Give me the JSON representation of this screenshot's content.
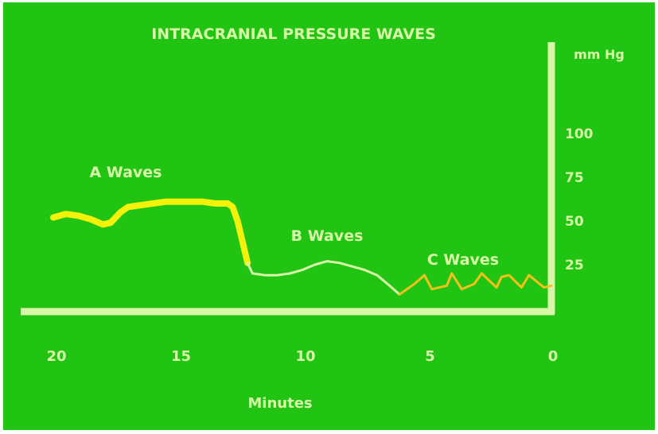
{
  "chart_data": {
    "type": "line",
    "title": "INTRACRANIAL PRESSURE WAVES",
    "xlabel": "Minutes",
    "ylabel": "mm Hg",
    "xlim": [
      20,
      0
    ],
    "ylim": [
      0,
      100
    ],
    "x_ticks": [
      "20",
      "15",
      "10",
      "5",
      "0"
    ],
    "y_ticks": [
      "100",
      "75",
      "50",
      "25"
    ],
    "grid": false,
    "colors": {
      "background": "#22c414",
      "axis": "#d8f7a8",
      "text": "#d8f7a8",
      "a_waves": "#f4f20a",
      "b_waves": "#d8f7a8",
      "c_waves": "#f2c21a"
    },
    "series": [
      {
        "name": "A Waves",
        "x": [
          20,
          19.5,
          19,
          18.5,
          18,
          17.7,
          17.3,
          17,
          16.5,
          16,
          15.5,
          15,
          14.5,
          14,
          13.5,
          13,
          12.8,
          12.6,
          12.4,
          12.2
        ],
        "y": [
          52,
          54,
          53,
          51,
          48,
          49,
          55,
          58,
          59,
          60,
          61,
          61,
          61,
          61,
          60,
          60,
          58,
          50,
          38,
          26
        ]
      },
      {
        "name": "B Waves",
        "x": [
          12.2,
          12,
          11.5,
          11,
          10.5,
          10,
          9.5,
          9,
          8.5,
          8,
          7.5,
          7,
          6.5,
          6.1
        ],
        "y": [
          26,
          20,
          19,
          19,
          20,
          22,
          25,
          27,
          26,
          24,
          22,
          19,
          13,
          8
        ]
      },
      {
        "name": "C Waves",
        "x": [
          6.1,
          5.5,
          5.1,
          4.8,
          4.2,
          4,
          3.6,
          3.1,
          2.8,
          2.2,
          2,
          1.7,
          1.2,
          0.9,
          0.3,
          0
        ],
        "y": [
          8,
          14,
          19,
          11,
          13,
          20,
          11,
          14,
          20,
          12,
          18,
          19,
          12,
          19,
          12,
          13
        ]
      }
    ],
    "annotations": [
      "A Waves",
      "B Waves",
      "C Waves"
    ]
  }
}
